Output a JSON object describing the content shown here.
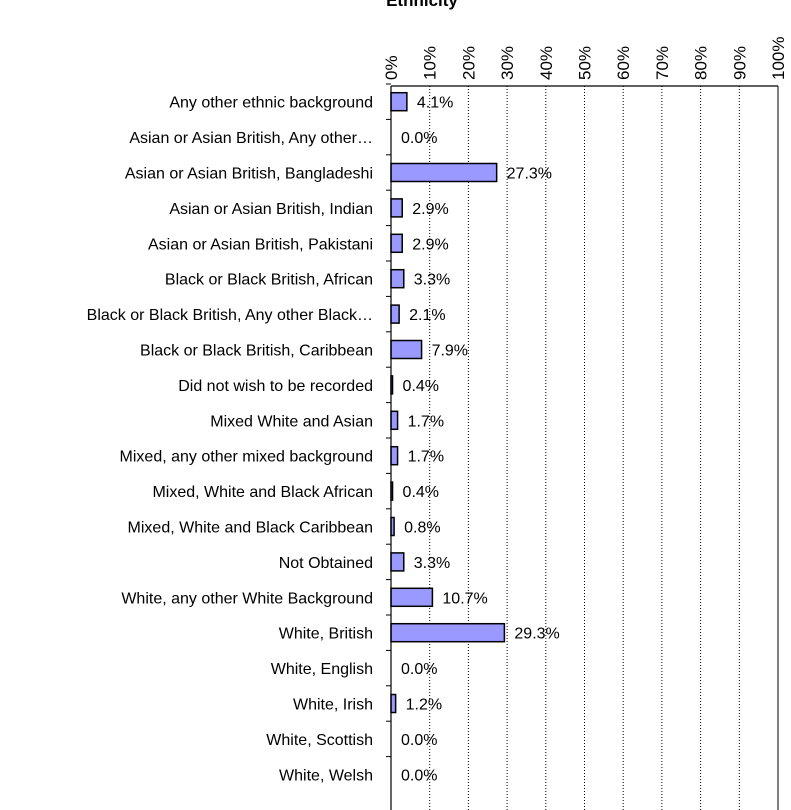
{
  "chart_data": {
    "type": "bar",
    "orientation": "horizontal",
    "title": "Ethnicity",
    "categories": [
      "Any other ethnic background",
      "Asian or Asian British, Any other…",
      "Asian or Asian British, Bangladeshi",
      "Asian or Asian British, Indian",
      "Asian or Asian British, Pakistani",
      "Black or Black British, African",
      "Black or Black British, Any other Black…",
      "Black or Black British, Caribbean",
      "Did not wish to be recorded",
      "Mixed White and Asian",
      "Mixed, any other mixed background",
      "Mixed, White and Black African",
      "Mixed, White and Black Caribbean",
      "Not Obtained",
      "White, any other White Background",
      "White, British",
      "White, English",
      "White, Irish",
      "White, Scottish",
      "White, Welsh"
    ],
    "values": [
      4.1,
      0.0,
      27.3,
      2.9,
      2.9,
      3.3,
      2.1,
      7.9,
      0.4,
      1.7,
      1.7,
      0.4,
      0.8,
      3.3,
      10.7,
      29.3,
      0.0,
      1.2,
      0.0,
      0.0
    ],
    "data_labels": [
      "4.1%",
      "0.0%",
      "27.3%",
      "2.9%",
      "2.9%",
      "3.3%",
      "2.1%",
      "7.9%",
      "0.4%",
      "1.7%",
      "1.7%",
      "0.4%",
      "0.8%",
      "3.3%",
      "10.7%",
      "29.3%",
      "0.0%",
      "1.2%",
      "0.0%",
      "0.0%"
    ],
    "x_ticks": [
      "0%",
      "10%",
      "20%",
      "30%",
      "40%",
      "50%",
      "60%",
      "70%",
      "80%",
      "90%",
      "100%"
    ],
    "xlim": [
      0,
      100
    ],
    "x_axis_position": "top",
    "grid": true,
    "bar_color": "#9999ff",
    "bar_edge_color": "#000000",
    "grid_color": "#000000"
  }
}
